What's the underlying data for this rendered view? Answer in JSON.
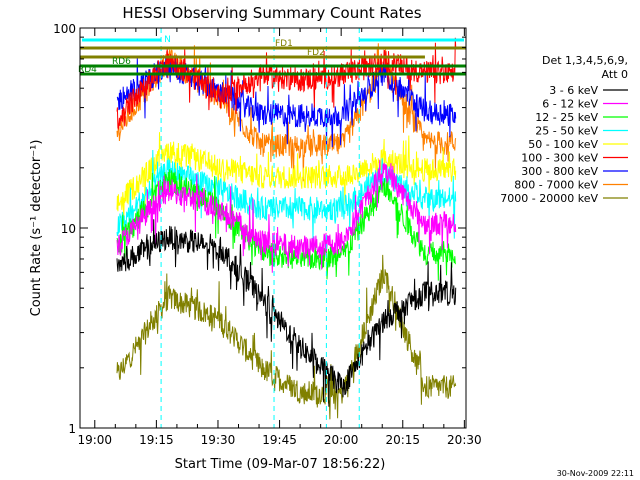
{
  "chart_data": {
    "type": "line",
    "title": "HESSI Observing Summary Count Rates",
    "xlabel": "Start Time (09-Mar-07 18:56:22)",
    "ylabel": "Count Rate (s⁻¹ detector⁻¹)",
    "ylog": true,
    "ylim": [
      1,
      100
    ],
    "xlim_minutes_after_19_00": [
      -3.6,
      34
    ],
    "x_ticks": [
      "19:00",
      "19:15",
      "19:30",
      "19:45",
      "20:00",
      "20:15",
      "20:30"
    ],
    "y_ticks": [
      "1",
      "10",
      "100"
    ],
    "legend_header": [
      "Det 1,3,4,5,6,9,",
      "Att 0"
    ],
    "legend_position": "right",
    "footer_date": "30-Nov-2009 22:11",
    "annotations": {
      "night": "N",
      "saa": [],
      "flags": [
        {
          "label": "FD1",
          "color": "#808000"
        },
        {
          "label": "FD2",
          "color": "#808000"
        },
        {
          "label": "RD6",
          "color": "#008000"
        },
        {
          "label": "RD4",
          "color": "#008000"
        }
      ]
    },
    "orbit_markers_cyan_minutes": [
      -3.6,
      4.3,
      15.3,
      20.4,
      23.6,
      35.0
    ],
    "series": [
      {
        "name": "3 - 6 keV",
        "color": "#000000",
        "x": [
          0,
          5,
          10,
          14,
          18,
          22,
          26,
          30,
          34
        ],
        "y": [
          6.5,
          9.0,
          8.0,
          4.5,
          2.5,
          1.6,
          3.5,
          4.8,
          4.7
        ]
      },
      {
        "name": "6 - 12 keV",
        "color": "#ff00ff",
        "x": [
          0,
          5,
          10,
          14,
          18,
          22,
          26,
          30,
          34
        ],
        "y": [
          8.0,
          15.5,
          12.5,
          8.5,
          8.0,
          8.5,
          20.0,
          10.5,
          10.5
        ]
      },
      {
        "name": "12 - 25 keV",
        "color": "#00ff00",
        "x": [
          0,
          5,
          10,
          14,
          18,
          22,
          26,
          30,
          34
        ],
        "y": [
          8.0,
          17.5,
          13.0,
          7.5,
          7.0,
          7.2,
          16.5,
          7.5,
          7.5
        ]
      },
      {
        "name": "25 - 50 keV",
        "color": "#00ffff",
        "x": [
          0,
          5,
          10,
          14,
          18,
          22,
          26,
          30,
          34
        ],
        "y": [
          10.0,
          19.5,
          15.5,
          12.5,
          12.5,
          12.5,
          18.5,
          14.0,
          14.0
        ]
      },
      {
        "name": "50 - 100 keV",
        "color": "#ffff00",
        "x": [
          0,
          5,
          10,
          14,
          18,
          22,
          26,
          30,
          34
        ],
        "y": [
          13.0,
          24.5,
          20.0,
          18.0,
          18.0,
          18.0,
          22.0,
          19.5,
          19.5
        ]
      },
      {
        "name": "100 - 300 keV",
        "color": "#ff0000",
        "x": [
          0,
          5,
          10,
          14,
          18,
          22,
          26,
          30,
          34
        ],
        "y": [
          35.0,
          70.0,
          45.0,
          58.0,
          55.0,
          58.0,
          68.0,
          60.0,
          58.0
        ]
      },
      {
        "name": "300 - 800 keV",
        "color": "#0000ff",
        "x": [
          0,
          5,
          10,
          14,
          18,
          22,
          26,
          30,
          34
        ],
        "y": [
          43.0,
          65.0,
          48.0,
          37.0,
          36.5,
          36.5,
          60.0,
          38.0,
          36.5
        ]
      },
      {
        "name": "800 - 7000 keV",
        "color": "#ff8000",
        "x": [
          0,
          5,
          10,
          14,
          18,
          22,
          26,
          30,
          34
        ],
        "y": [
          30.0,
          70.0,
          45.0,
          26.0,
          25.5,
          26.0,
          65.0,
          27.0,
          26.0
        ]
      },
      {
        "name": "7000 - 20000 keV",
        "color": "#808000",
        "x": [
          0,
          5,
          10,
          14,
          18,
          22,
          26,
          30,
          34
        ],
        "y": [
          1.8,
          4.5,
          3.5,
          2.0,
          1.5,
          1.5,
          6.0,
          1.6,
          1.6
        ]
      }
    ]
  }
}
